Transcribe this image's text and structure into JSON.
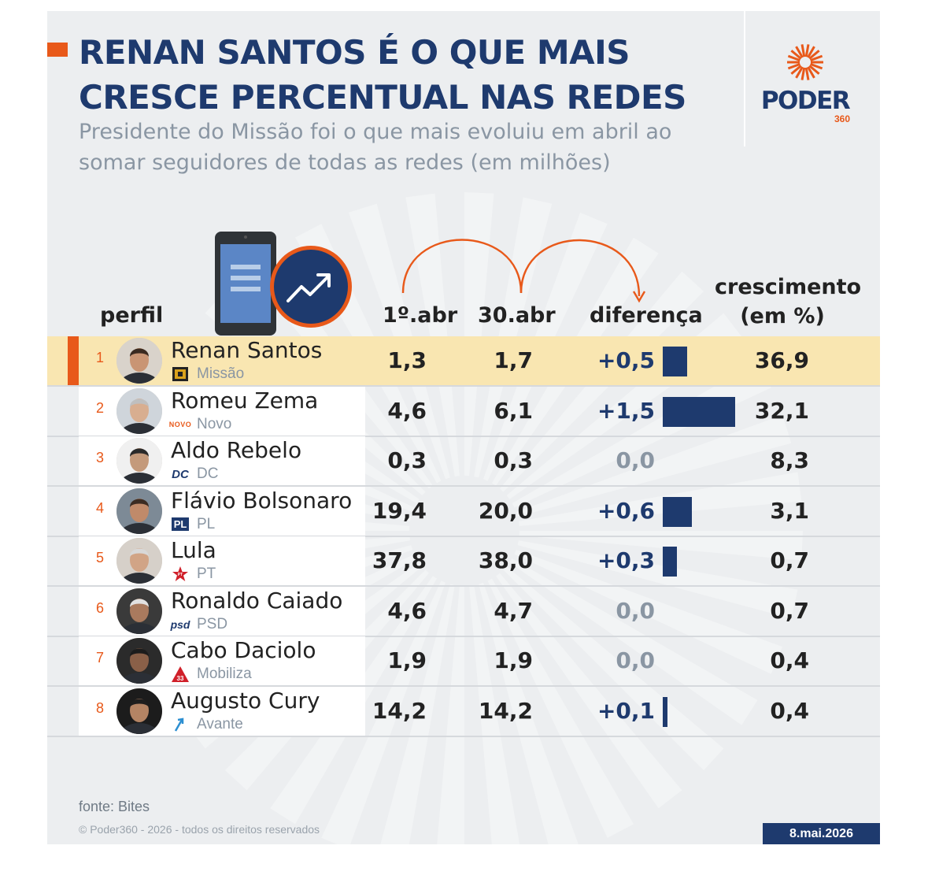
{
  "title": "RENAN SANTOS É O QUE MAIS CRESCE PERCENTUAL NAS REDES",
  "subtitle": "Presidente do Missão foi o que mais evoluiu em abril ao somar seguidores de todas as redes (em milhões)",
  "brand": {
    "name": "PODER",
    "suffix": "360"
  },
  "columns": {
    "profile": "perfil",
    "start": "1º.abr",
    "end": "30.abr",
    "difference": "diferença",
    "growth_line1": "crescimento",
    "growth_line2": "(em %)"
  },
  "rows": [
    {
      "rank": "1",
      "name": "Renan Santos",
      "party": "Missão",
      "start": "1,3",
      "end": "1,7",
      "diff": "+0,5",
      "diff_value": 0.5,
      "growth": "36,9",
      "highlight": true,
      "party_icon": "missao-logo-icon"
    },
    {
      "rank": "2",
      "name": "Romeu Zema",
      "party": "Novo",
      "start": "4,6",
      "end": "6,1",
      "diff": "+1,5",
      "diff_value": 1.5,
      "growth": "32,1",
      "party_icon": "novo-logo-icon",
      "party_icon_text": "NOVO"
    },
    {
      "rank": "3",
      "name": "Aldo Rebelo",
      "party": "DC",
      "start": "0,3",
      "end": "0,3",
      "diff": "0,0",
      "diff_value": 0,
      "growth": "8,3",
      "party_icon": "dc-logo-icon",
      "party_icon_text": "DC"
    },
    {
      "rank": "4",
      "name": "Flávio Bolsonaro",
      "party": "PL",
      "start": "19,4",
      "end": "20,0",
      "diff": "+0,6",
      "diff_value": 0.6,
      "growth": "3,1",
      "party_icon": "pl-logo-icon",
      "party_icon_text": "PL"
    },
    {
      "rank": "5",
      "name": "Lula",
      "party": "PT",
      "start": "37,8",
      "end": "38,0",
      "diff": "+0,3",
      "diff_value": 0.3,
      "growth": "0,7",
      "party_icon": "pt-star-icon",
      "party_icon_text": "PT"
    },
    {
      "rank": "6",
      "name": "Ronaldo Caiado",
      "party": "PSD",
      "start": "4,6",
      "end": "4,7",
      "diff": "0,0",
      "diff_value": 0,
      "growth": "0,7",
      "party_icon": "psd-logo-icon",
      "party_icon_text": "psd"
    },
    {
      "rank": "7",
      "name": "Cabo Daciolo",
      "party": "Mobiliza",
      "start": "1,9",
      "end": "1,9",
      "diff": "0,0",
      "diff_value": 0,
      "growth": "0,4",
      "party_icon": "mobiliza-logo-icon",
      "party_icon_text": "33"
    },
    {
      "rank": "8",
      "name": "Augusto Cury",
      "party": "Avante",
      "start": "14,2",
      "end": "14,2",
      "diff": "+0,1",
      "diff_value": 0.1,
      "growth": "0,4",
      "party_icon": "avante-logo-icon"
    }
  ],
  "source": "fonte: Bites",
  "copyright": "© Poder360 - 2026 - todos os direitos reservados",
  "date": "8.mai.2026",
  "colors": {
    "navy": "#1e3a6e",
    "orange": "#e8591a",
    "highlight": "#f9e6b1",
    "zero": "#8a96a3",
    "background": "#eceef0"
  },
  "icons": {
    "phone": "smartphone-icon",
    "trend": "trend-up-icon",
    "arrows": "curved-arrow-icon"
  }
}
